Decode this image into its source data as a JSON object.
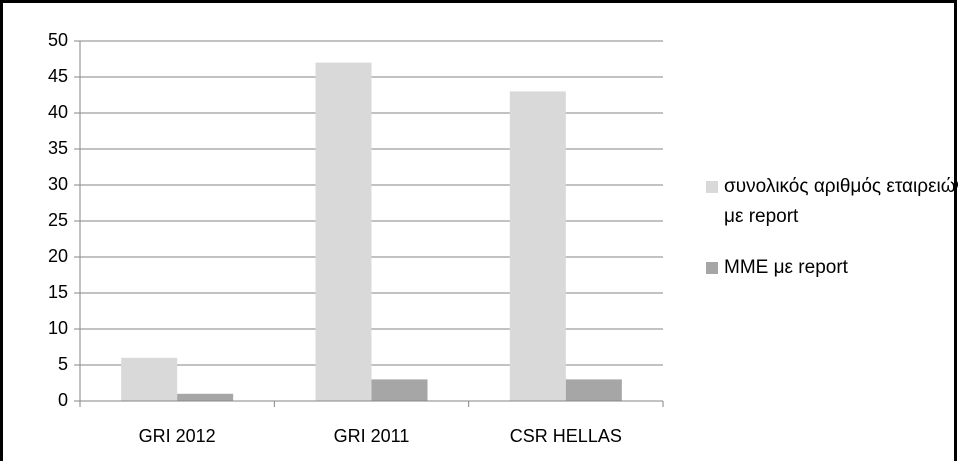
{
  "chart_data": {
    "type": "bar",
    "categories": [
      "GRI 2012",
      "GRI 2011",
      "CSR HELLAS"
    ],
    "series": [
      {
        "name": "συνολικός αριθμός εταιρειών με report",
        "color": "#d9d9d9",
        "values": [
          6,
          47,
          43
        ]
      },
      {
        "name": "ΜΜΕ με report",
        "color": "#a6a6a6",
        "values": [
          1,
          3,
          3
        ]
      }
    ],
    "ylim": [
      0,
      50
    ],
    "yticks": [
      0,
      5,
      10,
      15,
      20,
      25,
      30,
      35,
      40,
      45,
      50
    ],
    "grid": true,
    "legend": "right"
  }
}
